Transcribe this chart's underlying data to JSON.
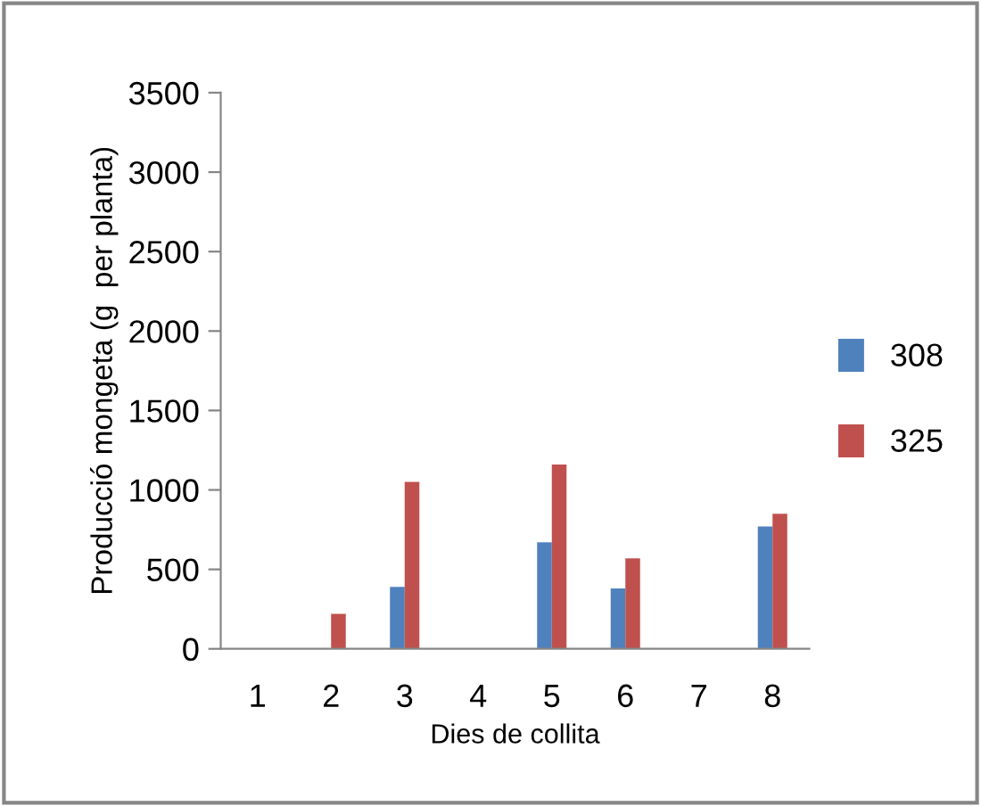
{
  "chart_data": {
    "type": "bar",
    "xlabel": "Dies de collita",
    "ylabel": "Producció mongeta (g  per planta)",
    "categories": [
      "1",
      "2",
      "3",
      "4",
      "5",
      "6",
      "7",
      "8"
    ],
    "series": [
      {
        "name": "308",
        "color": "#4f81bd",
        "values": [
          0,
          0,
          390,
          0,
          670,
          380,
          0,
          770
        ]
      },
      {
        "name": "325",
        "color": "#c0504d",
        "values": [
          0,
          220,
          1050,
          0,
          1160,
          570,
          0,
          850
        ]
      }
    ],
    "ylim": [
      0,
      3500
    ],
    "yticks": [
      0,
      500,
      1000,
      1500,
      2000,
      2500,
      3000,
      3500
    ],
    "grid": false,
    "legend": "right"
  }
}
